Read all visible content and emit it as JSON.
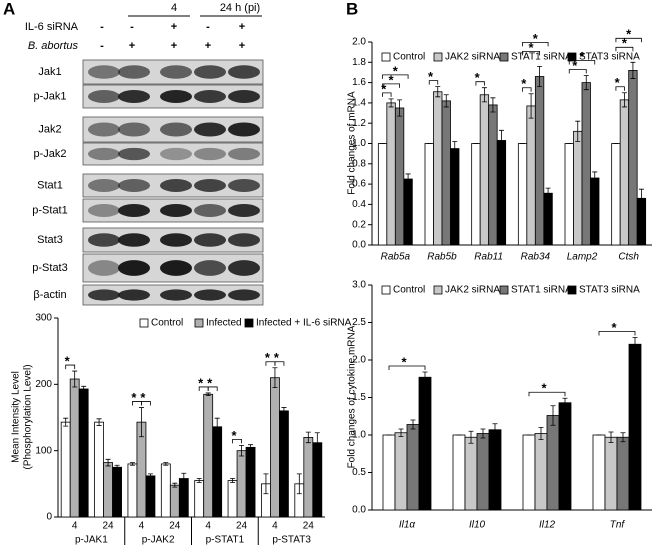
{
  "panels": {
    "a": "A",
    "b": "B"
  },
  "blot": {
    "time_labels": [
      "4",
      "24 h (pi)"
    ],
    "conditions": [
      {
        "name": "IL-6 siRNA",
        "signs": [
          "-",
          "-",
          "+",
          "-",
          "+"
        ]
      },
      {
        "name": "B. abortus",
        "signs": [
          "-",
          "+",
          "+",
          "+",
          "+"
        ]
      }
    ],
    "rows": [
      "Jak1",
      "p-Jak1",
      "Jak2",
      "p-Jak2",
      "Stat1",
      "p-Stat1",
      "Stat3",
      "p-Stat3",
      "β-actin"
    ]
  },
  "chart_data": [
    {
      "type": "bar",
      "ylabel": [
        "Mean Intensity Level",
        "(Phosphorylation Level)"
      ],
      "categories": [
        "4",
        "24",
        "4",
        "24",
        "4",
        "24",
        "4",
        "24"
      ],
      "groups": [
        "p-JAK1",
        "p-JAK2",
        "p-STAT1",
        "p-STAT3"
      ],
      "series": [
        {
          "name": "Control",
          "color": "#ffffff",
          "values": [
            143,
            143,
            80,
            80,
            55,
            55,
            50,
            50
          ],
          "errors": [
            6,
            5,
            2,
            2,
            3,
            3,
            15,
            15
          ]
        },
        {
          "name": "Infected",
          "color": "#b0b0b0",
          "values": [
            208,
            82,
            143,
            48,
            185,
            100,
            210,
            120
          ],
          "errors": [
            12,
            5,
            22,
            3,
            2,
            8,
            15,
            8
          ]
        },
        {
          "name": "Infected + IL-6 siRNA",
          "color": "#000000",
          "values": [
            193,
            75,
            62,
            58,
            136,
            105,
            160,
            112
          ],
          "errors": [
            4,
            3,
            3,
            8,
            13,
            4,
            5,
            15
          ]
        }
      ],
      "ylim": [
        0,
        300
      ],
      "yticks": [
        0,
        100,
        200,
        300
      ],
      "annotations": [
        "*",
        "*",
        "*",
        "*",
        "*",
        "*",
        "*",
        "*"
      ]
    },
    {
      "type": "bar",
      "ylabel": [
        "Fold changes of mRNA"
      ],
      "categories": [
        "Rab5a",
        "Rab5b",
        "Rab11",
        "Rab34",
        "Lamp2",
        "Ctsh"
      ],
      "series": [
        {
          "name": "Control",
          "color": "#ffffff",
          "values": [
            1.0,
            1.0,
            1.0,
            1.0,
            1.0,
            1.0
          ],
          "errors": [
            0,
            0,
            0,
            0,
            0,
            0
          ]
        },
        {
          "name": "JAK2 siRNA",
          "color": "#c8c8c8",
          "values": [
            1.4,
            1.51,
            1.48,
            1.37,
            1.12,
            1.43
          ],
          "errors": [
            0.04,
            0.05,
            0.07,
            0.12,
            0.1,
            0.07
          ]
        },
        {
          "name": "STAT1 siRNA",
          "color": "#777777",
          "values": [
            1.35,
            1.42,
            1.38,
            1.66,
            1.6,
            1.72
          ],
          "errors": [
            0.08,
            0.06,
            0.07,
            0.1,
            0.07,
            0.08
          ]
        },
        {
          "name": "STAT3 siRNA",
          "color": "#000000",
          "values": [
            0.65,
            0.95,
            1.03,
            0.51,
            0.66,
            0.46
          ],
          "errors": [
            0.05,
            0.07,
            0.1,
            0.05,
            0.06,
            0.09
          ]
        }
      ],
      "ylim": [
        0,
        2
      ],
      "yticks": [
        {
          "value": 0,
          "label": "0.0"
        },
        0.2,
        0.4,
        0.6,
        0.8,
        {
          "value": 1,
          "label": "1.0"
        },
        1.2,
        1.4,
        1.6,
        1.8,
        {
          "value": 2,
          "label": "2.0"
        }
      ],
      "annotations": [
        "*",
        "*",
        "*",
        "*",
        "*",
        "*",
        "*",
        "*",
        "*",
        "*",
        "*",
        "*",
        "*"
      ]
    },
    {
      "type": "bar",
      "ylabel": [
        "Fold changes of cytokine mRNA"
      ],
      "categories": [
        "Il1α",
        "Il10",
        "Il12",
        "Tnf"
      ],
      "series": [
        {
          "name": "Control",
          "color": "#ffffff",
          "values": [
            1.0,
            1.0,
            1.0,
            1.0
          ],
          "errors": [
            0,
            0,
            0,
            0
          ]
        },
        {
          "name": "JAK2 siRNA",
          "color": "#c8c8c8",
          "values": [
            1.03,
            0.97,
            1.02,
            0.97
          ],
          "errors": [
            0.05,
            0.08,
            0.08,
            0.07
          ]
        },
        {
          "name": "STAT1 siRNA",
          "color": "#777777",
          "values": [
            1.14,
            1.02,
            1.26,
            0.97
          ],
          "errors": [
            0.06,
            0.06,
            0.13,
            0.06
          ]
        },
        {
          "name": "STAT3 siRNA",
          "color": "#000000",
          "values": [
            1.77,
            1.07,
            1.43,
            2.21
          ],
          "errors": [
            0.07,
            0.08,
            0.06,
            0.09
          ]
        }
      ],
      "ylim": [
        0,
        3
      ],
      "yticks": [
        {
          "value": 0,
          "label": "0.0"
        },
        0.5,
        {
          "value": 1,
          "label": "1.0"
        },
        1.5,
        {
          "value": 2,
          "label": "2.0"
        },
        2.5,
        {
          "value": 3,
          "label": "3.0"
        }
      ],
      "annotations": [
        "*",
        "*",
        "*"
      ]
    }
  ]
}
